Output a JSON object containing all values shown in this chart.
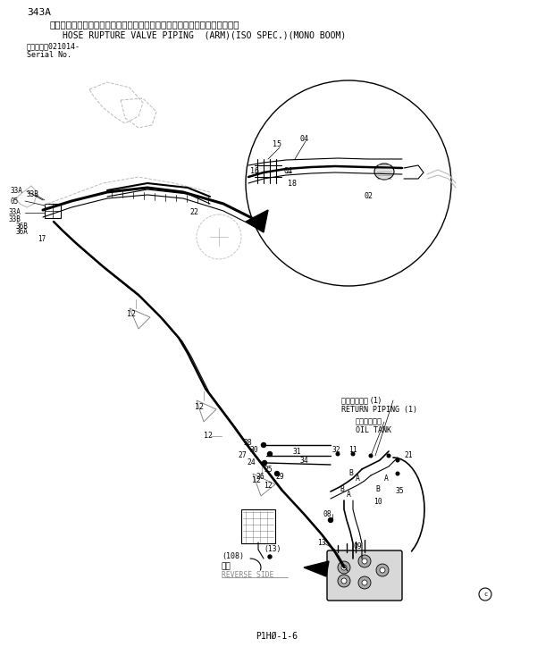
{
  "title_line1": "343A",
  "title_line2": "ホースラプチャーバルブ配管（アーム）　（イスオ仕様）　（モノブーム）",
  "title_line3": "HOSE RUPTURE VALVE PIPING  (ARM)(ISO SPEC.)(MONO BOOM)",
  "serial_line1": "適用号機　021014-",
  "serial_line2": "Serial No.",
  "footer": "P1HØ-1-6",
  "bg_color": "#ffffff",
  "lc": "#000000",
  "mgray": "#888888",
  "lgray": "#bbbbbb"
}
